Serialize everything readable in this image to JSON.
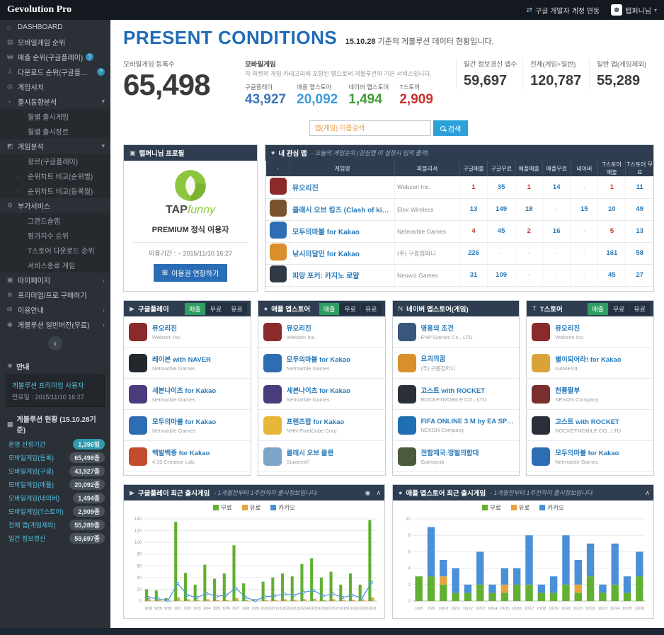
{
  "topbar": {
    "logo": "Gevolution Pro",
    "google_link": "구글 개발자 계정 연동",
    "user": "탭퍼니님"
  },
  "sidebar": {
    "items": [
      {
        "icon": "dashboard",
        "label": "DASHBOARD"
      },
      {
        "icon": "mobile",
        "label": "모바일게임 순위"
      },
      {
        "icon": "sales",
        "label": "매출 순위(구글플레이)",
        "help": true
      },
      {
        "icon": "download",
        "label": "다운로드 순위(구글플레이)",
        "help": true
      },
      {
        "icon": "search",
        "label": "게임서치"
      },
      {
        "icon": "trend",
        "label": "출시동향분석",
        "chevron": "down"
      },
      {
        "label": "월별 출시게임",
        "sub": true
      },
      {
        "label": "월별 출시장르",
        "sub": true
      },
      {
        "icon": "analysis",
        "label": "게임분석",
        "chevron": "down"
      },
      {
        "label": "장르(구글플레이)",
        "sub": true
      },
      {
        "label": "순위차트 비교(순위별)",
        "sub": true
      },
      {
        "label": "순위차트 비교(등록월)",
        "sub": true
      },
      {
        "icon": "addon",
        "label": "부가서비스"
      },
      {
        "label": "그랜드슬램",
        "sub": true
      },
      {
        "label": "평가지수 순위",
        "sub": true
      },
      {
        "label": "T스토어 다운로드 순위",
        "sub": true
      },
      {
        "label": "서비스종료 게임",
        "sub": true
      },
      {
        "icon": "mypage",
        "label": "마이페이지",
        "chevron": "left"
      },
      {
        "icon": "buy",
        "label": "프리미엄/프로 구매하기"
      },
      {
        "icon": "guide",
        "label": "이용안내",
        "chevron": "left"
      },
      {
        "icon": "free",
        "label": "게볼루션 일반버전(무료)",
        "chevron": "left"
      }
    ]
  },
  "notice": {
    "header": "안내",
    "line1": "게볼루션 프리미엄 사용자",
    "line2": "만료일 : 2015/11/10 16:27"
  },
  "status": {
    "header": "게볼루션 현황 (15.10.28기준)",
    "rows": [
      {
        "label": "운영 산정기간",
        "value": "1,396일",
        "badge": "#2e9cad"
      },
      {
        "label": "모바일게임(등록)",
        "value": "65,498종",
        "badge": "#49505a"
      },
      {
        "label": "모바일게임(구글)",
        "value": "43,927종",
        "badge": "#49505a"
      },
      {
        "label": "모바일게임(애플)",
        "value": "20,092종",
        "badge": "#49505a"
      },
      {
        "label": "모바일게임(네이버)",
        "value": "1,494종",
        "badge": "#49505a"
      },
      {
        "label": "모바일게임(T스토어)",
        "value": "2,909종",
        "badge": "#49505a"
      },
      {
        "label": "전체 앱(게임제외)",
        "value": "55,289종",
        "badge": "#49505a"
      },
      {
        "label": "일간 정보경신",
        "value": "59,697종",
        "badge": "#49505a"
      }
    ]
  },
  "header": {
    "title": "PRESENT CONDITIONS",
    "subtitle_date": "15.10.28",
    "subtitle_rest": " 기준의 게볼루션 데이터 현황입니다."
  },
  "stats": {
    "registered_label": "모바일게임 등록수",
    "registered_value": "65,498",
    "mobile_label": "모바일게임",
    "mobile_desc": "각 마켓의 게임 카테고리에 포함된 앱으로써 게볼루션의 기본 서비스입니다.",
    "stores": [
      {
        "label": "구글플레이",
        "value": "43,927",
        "color": "#3a76b8"
      },
      {
        "label": "애플 앱스토어",
        "value": "20,092",
        "color": "#3a9bd8"
      },
      {
        "label": "네이버 앱스토어",
        "value": "1,494",
        "color": "#3f9c35"
      },
      {
        "label": "T스토어",
        "value": "2,909",
        "color": "#c9302c"
      }
    ],
    "others": [
      {
        "label": "일간 정보경신 앱수",
        "value": "59,697"
      },
      {
        "label": "전체(게임+일반)",
        "value": "120,787"
      },
      {
        "label": "일반 앱(게임제외)",
        "value": "55,289"
      }
    ]
  },
  "search": {
    "placeholder": "앱(게임) 이름검색",
    "button": "검색"
  },
  "profile": {
    "header": "탭퍼니님 프로필",
    "brand_tap": "TAP",
    "brand_funny": "funny",
    "tier": "PREMIUM 정식 이용자",
    "period": "이용기간 : ~ 2015/11/10 16:27",
    "extend_button": "이용권 연장하기"
  },
  "watchlist": {
    "title": "내 관심 앱",
    "subtitle": "- 오늘의 게임순위 (관심앱 미 설정시 임의 출력)",
    "columns": [
      "-",
      "게임명",
      "퍼블리셔",
      "구글매출",
      "구글무료",
      "애플매출",
      "애플무료",
      "네이버",
      "T스토어 매출",
      "T스토어 무료"
    ],
    "rows": [
      {
        "thumb": "#8b2a2a",
        "name": "뮤오리진",
        "publisher": "Webzen Inc.",
        "values": [
          "1",
          "35",
          "1",
          "14",
          "-",
          "1",
          "11"
        ]
      },
      {
        "thumb": "#7a5230",
        "name": "클래시 오브 킹즈 (Clash of kings)",
        "publisher": "Elex Wireless",
        "values": [
          "13",
          "149",
          "18",
          "-",
          "15",
          "10",
          "49"
        ]
      },
      {
        "thumb": "#2e6db4",
        "name": "모두의마블 for Kakao",
        "publisher": "Netmarble Games",
        "values": [
          "4",
          "45",
          "2",
          "16",
          "-",
          "5",
          "13"
        ]
      },
      {
        "thumb": "#d98f2b",
        "name": "낚시의달인 for Kakao",
        "publisher": "(주) 구름컴퍼니",
        "values": [
          "226",
          "-",
          "-",
          "-",
          "-",
          "161",
          "58"
        ]
      },
      {
        "thumb": "#303a46",
        "name": "피망 포커: 카지노 로얄",
        "publisher": "Neowiz Games",
        "values": [
          "31",
          "109",
          "-",
          "-",
          "-",
          "45",
          "27"
        ]
      }
    ]
  },
  "panels": [
    {
      "icon": "googleplay",
      "title": "구글플레이",
      "tabs": [
        "매출",
        "무료",
        "유료"
      ],
      "active_tab": "매출",
      "items": [
        {
          "thumb": "#8b2a2a",
          "name": "뮤오리진",
          "publisher": "Webzen Inc."
        },
        {
          "thumb": "#23272e",
          "name": "레이븐 with NAVER",
          "publisher": "Netmarble Games"
        },
        {
          "thumb": "#4a3b7c",
          "name": "세븐나이츠 for Kakao",
          "publisher": "Netmarble Games"
        },
        {
          "thumb": "#2e6db4",
          "name": "모두의마블 for Kakao",
          "publisher": "Netmarble Games"
        },
        {
          "thumb": "#c24b2e",
          "name": "백발백중 for Kakao",
          "publisher": "4:33 Creative Lab."
        }
      ]
    },
    {
      "icon": "apple",
      "title": "애플 앱스토어",
      "tabs": [
        "매출",
        "무료",
        "유료"
      ],
      "active_tab": "매출",
      "items": [
        {
          "thumb": "#8b2a2a",
          "name": "뮤오리진",
          "publisher": "Webzen Inc."
        },
        {
          "thumb": "#2e6db4",
          "name": "모두의마블 for Kakao",
          "publisher": "Netmarble Games"
        },
        {
          "thumb": "#4a3b7c",
          "name": "세븐나이츠 for Kakao",
          "publisher": "Netmarble Games"
        },
        {
          "thumb": "#e8b73a",
          "name": "프렌즈팝 for Kakao",
          "publisher": "NHN PixelCube Corp."
        },
        {
          "thumb": "#7da4c9",
          "name": "클래시 오브 클랜",
          "publisher": "Supercell"
        }
      ]
    },
    {
      "icon": "naver",
      "title": "네이버 앱스토어(게임)",
      "tabs": [],
      "active_tab": "",
      "items": [
        {
          "thumb": "#3a567c",
          "name": "영웅의 조건",
          "publisher": "ENP Games Co., LTD"
        },
        {
          "thumb": "#d98f2b",
          "name": "요괴의꿈",
          "publisher": "(주) 구름컴퍼니"
        },
        {
          "thumb": "#2b2f38",
          "name": "고스트 with ROCKET",
          "publisher": "ROCKETMOBILE CO., LTD"
        },
        {
          "thumb": "#1f6fb2",
          "name": "FIFA ONLINE 3 M by EA SPORTS™",
          "publisher": "NEXON Company"
        },
        {
          "thumb": "#4a5a3a",
          "name": "전함제국:정벌의함대",
          "publisher": "Gamepub"
        }
      ]
    },
    {
      "icon": "tstore",
      "title": "T스토어",
      "tabs": [
        "매출",
        "무료",
        "유료"
      ],
      "active_tab": "매출",
      "items": [
        {
          "thumb": "#8b2a2a",
          "name": "뮤오리진",
          "publisher": "Webzen Inc."
        },
        {
          "thumb": "#d9a33a",
          "name": "별이되어라! for Kakao",
          "publisher": "GAMEVIL"
        },
        {
          "thumb": "#7a2e2e",
          "name": "천룡팔부",
          "publisher": "NEXON Company"
        },
        {
          "thumb": "#2b2f38",
          "name": "고스트 with ROCKET",
          "publisher": "ROCKETMOBILE CO., LTD"
        },
        {
          "thumb": "#2e6db4",
          "name": "모두의마블 for Kakao",
          "publisher": "Netmarble Games"
        }
      ]
    }
  ],
  "chart_data": [
    {
      "type": "bar",
      "title": "구글플레이 최근 출시게임",
      "subtitle": "- 1개월전부터 1주전까지 출시정보입니다.",
      "legend": [
        "무료",
        "유료",
        "카카오"
      ],
      "colors": {
        "무료": "#61b031",
        "유료": "#e8a33d",
        "카카오": "#4a90d9"
      },
      "stacked": false,
      "ylim": [
        0,
        140
      ],
      "ytick": 20,
      "x": [
        "9/28",
        "9/29",
        "9/30",
        "10/1",
        "10/2",
        "10/3",
        "10/4",
        "10/5",
        "10/6",
        "10/7",
        "10/8",
        "10/9",
        "10/10",
        "10/11",
        "10/12",
        "10/13",
        "10/14",
        "10/15",
        "10/16",
        "10/17",
        "10/18",
        "10/19",
        "10/20",
        "10/21"
      ],
      "series": [
        {
          "name": "무료",
          "type": "bar",
          "values": [
            20,
            18,
            5,
            135,
            48,
            28,
            62,
            38,
            47,
            95,
            30,
            3,
            33,
            40,
            47,
            42,
            63,
            73,
            40,
            50,
            28,
            47,
            28,
            138
          ]
        },
        {
          "name": "유료",
          "type": "bar",
          "values": [
            3,
            2,
            1,
            6,
            3,
            2,
            3,
            2,
            2,
            5,
            2,
            1,
            2,
            2,
            3,
            2,
            3,
            4,
            2,
            3,
            2,
            2,
            2,
            6
          ]
        },
        {
          "name": "카카오",
          "type": "line",
          "values": [
            6,
            4,
            1,
            30,
            10,
            6,
            13,
            8,
            10,
            22,
            6,
            1,
            7,
            9,
            12,
            10,
            15,
            18,
            9,
            12,
            6,
            10,
            5,
            32
          ]
        }
      ]
    },
    {
      "type": "bar",
      "title": "애플 앱스토어 최근 출시게임",
      "subtitle": "- 1개월전부터 1주전까지 출시정보입니다.",
      "legend": [
        "무료",
        "유료",
        "카카오"
      ],
      "colors": {
        "무료": "#61b031",
        "유료": "#e8a33d",
        "카카오": "#4a90d9"
      },
      "stacked": true,
      "ylim": [
        0,
        10
      ],
      "ytick": 2,
      "x": [
        "10/8",
        "10/9",
        "10/10",
        "10/11",
        "10/12",
        "10/13",
        "10/14",
        "10/15",
        "10/16",
        "10/17",
        "10/18",
        "10/19",
        "10/20",
        "10/21",
        "10/22",
        "10/23",
        "10/24",
        "10/25",
        "10/26"
      ],
      "series": [
        {
          "name": "무료",
          "type": "bar",
          "values": [
            3,
            3,
            2,
            1,
            1,
            2,
            1,
            1,
            2,
            2,
            1,
            1,
            2,
            1,
            3,
            1,
            2,
            1,
            3
          ]
        },
        {
          "name": "유료",
          "type": "bar",
          "values": [
            0,
            0,
            1,
            0,
            0,
            0,
            0,
            1,
            0,
            0,
            0,
            0,
            0,
            1,
            0,
            0,
            0,
            0,
            0
          ]
        },
        {
          "name": "카카오",
          "type": "bar",
          "values": [
            0,
            6,
            2,
            3,
            1,
            4,
            1,
            2,
            2,
            6,
            1,
            2,
            6,
            3,
            4,
            1,
            5,
            2,
            3
          ]
        }
      ]
    }
  ]
}
